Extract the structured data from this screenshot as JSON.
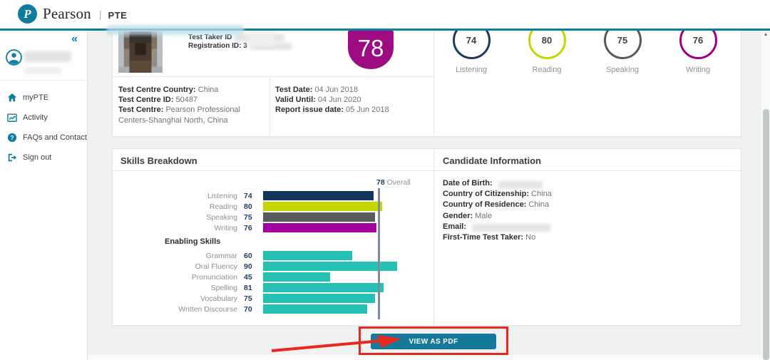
{
  "colors": {
    "accent_teal": "#0e7d9d",
    "button_teal": "#15799c",
    "annotation_red": "#e8281c",
    "overall_line": "#7d8c98"
  },
  "header": {
    "brand": "Pearson",
    "separator": "|",
    "product": "PTE"
  },
  "sidebar": {
    "collapse_glyph": "«",
    "items": [
      {
        "icon": "home-icon",
        "label": "myPTE"
      },
      {
        "icon": "activity-icon",
        "label": "Activity"
      },
      {
        "icon": "help-icon",
        "label": "FAQs and Contact"
      },
      {
        "icon": "sign-out-icon",
        "label": "Sign out"
      }
    ]
  },
  "score_report": {
    "id_block": {
      "test_taker_id_label": "Test Taker ID",
      "registration_id_label": "Registration ID: 3"
    },
    "overall_badge": "78",
    "communicative_scores": [
      {
        "label": "Listening",
        "value": "74",
        "color": "#1d3a5e"
      },
      {
        "label": "Reading",
        "value": "80",
        "color": "#c4d600"
      },
      {
        "label": "Speaking",
        "value": "75",
        "color": "#58595b"
      },
      {
        "label": "Writing",
        "value": "76",
        "color": "#9e007e"
      }
    ],
    "test_centre": [
      {
        "label": "Test Centre Country:",
        "value": "China"
      },
      {
        "label": "Test Centre ID:",
        "value": "50487"
      },
      {
        "label": "Test Centre:",
        "value": "Pearson Professional Centers-Shanghai North, China"
      }
    ],
    "test_dates": [
      {
        "label": "Test Date:",
        "value": "04 Jun 2018"
      },
      {
        "label": "Valid Until:",
        "value": "04 Jun 2020"
      },
      {
        "label": "Report issue date:",
        "value": "05 Jun 2018"
      }
    ]
  },
  "skills_breakdown": {
    "title": "Skills Breakdown"
  },
  "candidate_information": {
    "title": "Candidate Information",
    "rows": [
      {
        "label": "Date of Birth:",
        "value": "",
        "redacted": true
      },
      {
        "label": "Country of Citizenship:",
        "value": "China",
        "redacted": false
      },
      {
        "label": "Country of Residence:",
        "value": "China",
        "redacted": false
      },
      {
        "label": "Gender:",
        "value": "Male",
        "redacted": false
      },
      {
        "label": "Email:",
        "value": "",
        "redacted": true
      },
      {
        "label": "First-Time Test Taker:",
        "value": "No",
        "redacted": false
      }
    ]
  },
  "actions": {
    "view_as_pdf_label": "VIEW AS PDF"
  },
  "chart_data": {
    "type": "bar",
    "orientation": "horizontal",
    "title": "Skills Breakdown",
    "max": 90,
    "overall": {
      "value": 78,
      "label": "Overall"
    },
    "groups": [
      {
        "name": "",
        "items": [
          {
            "label": "Listening",
            "value": 74,
            "color": "#12365a"
          },
          {
            "label": "Reading",
            "value": 80,
            "color": "#c4d600"
          },
          {
            "label": "Speaking",
            "value": 75,
            "color": "#595a5c"
          },
          {
            "label": "Writing",
            "value": 76,
            "color": "#a3009f"
          }
        ]
      },
      {
        "name": "Enabling Skills",
        "items": [
          {
            "label": "Grammar",
            "value": 60,
            "color": "#26c1b5"
          },
          {
            "label": "Oral Fluency",
            "value": 90,
            "color": "#26c1b5"
          },
          {
            "label": "Pronunciation",
            "value": 45,
            "color": "#26c1b5"
          },
          {
            "label": "Spelling",
            "value": 81,
            "color": "#26c1b5"
          },
          {
            "label": "Vocabulary",
            "value": 75,
            "color": "#26c1b5"
          },
          {
            "label": "Written Discourse",
            "value": 70,
            "color": "#26c1b5"
          }
        ]
      }
    ]
  }
}
